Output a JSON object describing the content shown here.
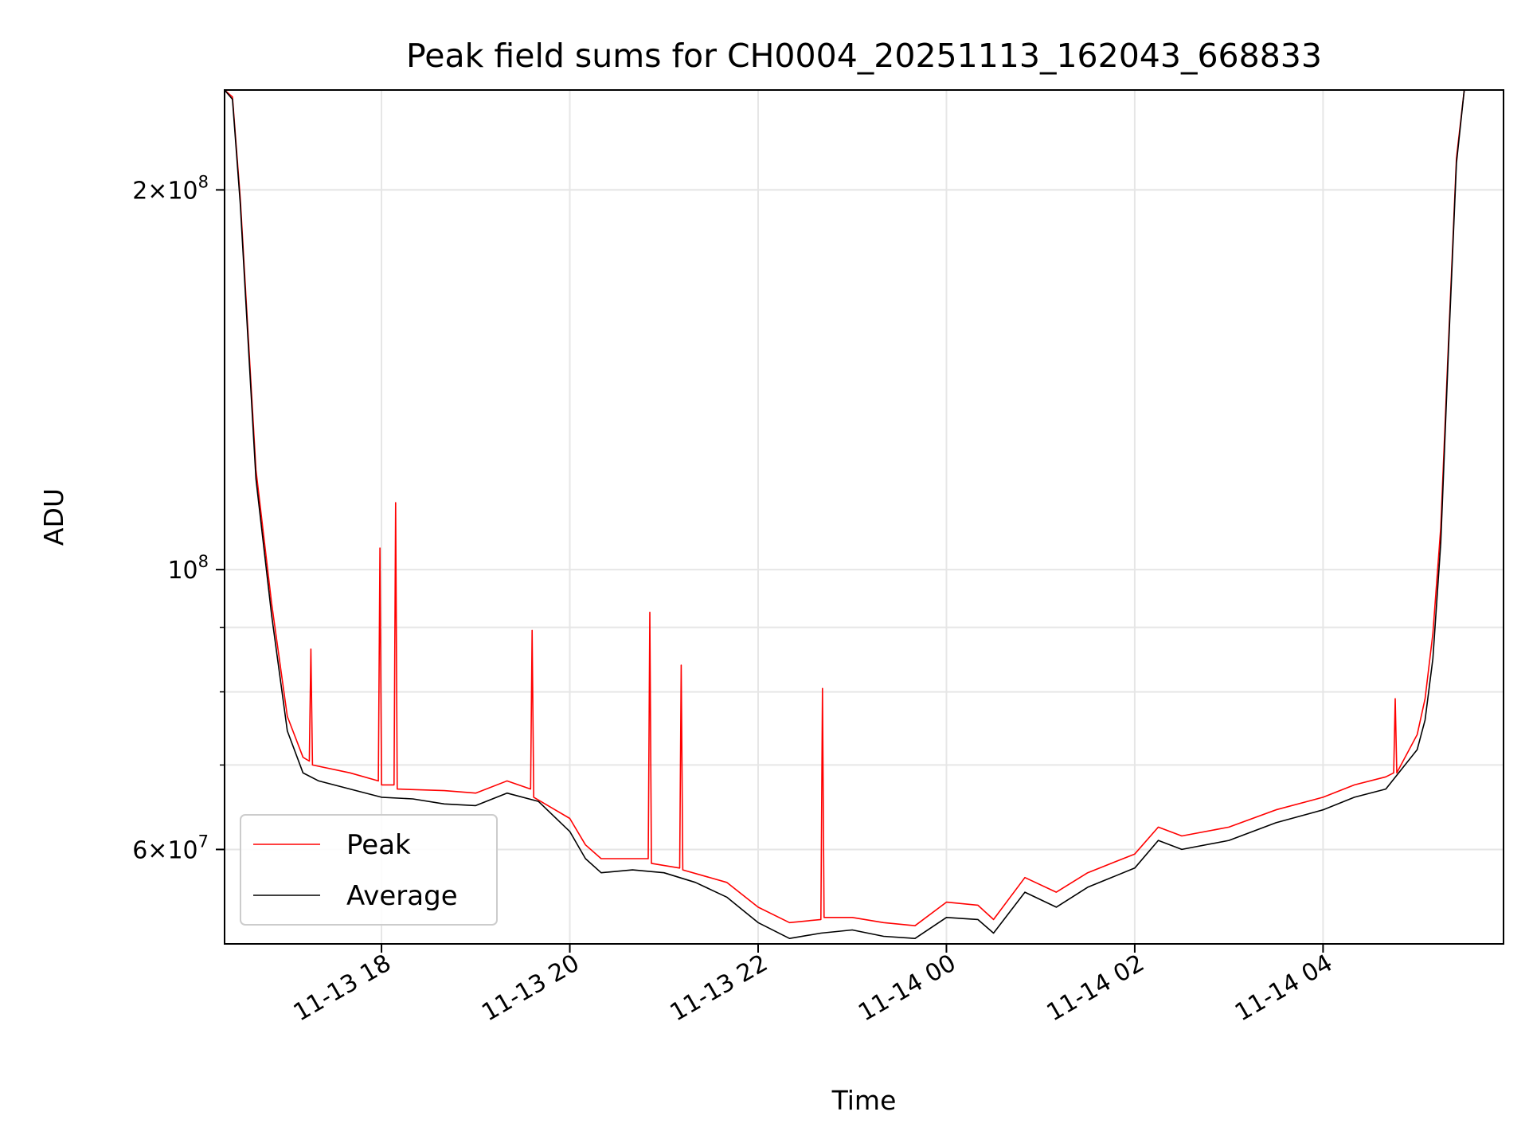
{
  "chart_data": {
    "type": "line",
    "title": "Peak field sums for CH0004_20251113_162043_668833",
    "xlabel": "Time",
    "ylabel": "ADU",
    "x_scale": "time",
    "y_scale": "log",
    "xlim": [
      "2025-11-13 16:20",
      "2025-11-14 05:55"
    ],
    "ylim": [
      50500000,
      240000000
    ],
    "grid": true,
    "legend_position": "lower-left",
    "x_ticks": [
      {
        "value": "2025-11-13 18:00",
        "label": "11-13 18"
      },
      {
        "value": "2025-11-13 20:00",
        "label": "11-13 20"
      },
      {
        "value": "2025-11-13 22:00",
        "label": "11-13 22"
      },
      {
        "value": "2025-11-14 00:00",
        "label": "11-14 00"
      },
      {
        "value": "2025-11-14 02:00",
        "label": "11-14 02"
      },
      {
        "value": "2025-11-14 04:00",
        "label": "11-14 04"
      }
    ],
    "y_ticks": [
      {
        "value": 60000000,
        "base": "6",
        "exp": "7"
      },
      {
        "value": 100000000,
        "base": "",
        "exp": "8"
      },
      {
        "value": 200000000,
        "base": "2",
        "exp": "8"
      }
    ],
    "series": [
      {
        "name": "Average",
        "color": "#000000",
        "x": [
          "2025-11-13 16:20",
          "2025-11-13 16:25",
          "2025-11-13 16:30",
          "2025-11-13 16:40",
          "2025-11-13 16:50",
          "2025-11-13 17:00",
          "2025-11-13 17:10",
          "2025-11-13 17:20",
          "2025-11-13 17:40",
          "2025-11-13 18:00",
          "2025-11-13 18:20",
          "2025-11-13 18:40",
          "2025-11-13 19:00",
          "2025-11-13 19:20",
          "2025-11-13 19:40",
          "2025-11-13 20:00",
          "2025-11-13 20:10",
          "2025-11-13 20:20",
          "2025-11-13 20:40",
          "2025-11-13 21:00",
          "2025-11-13 21:20",
          "2025-11-13 21:40",
          "2025-11-13 22:00",
          "2025-11-13 22:20",
          "2025-11-13 22:40",
          "2025-11-13 23:00",
          "2025-11-13 23:20",
          "2025-11-13 23:40",
          "2025-11-14 00:00",
          "2025-11-14 00:20",
          "2025-11-14 00:30",
          "2025-11-14 00:50",
          "2025-11-14 01:10",
          "2025-11-14 01:30",
          "2025-11-14 02:00",
          "2025-11-14 02:15",
          "2025-11-14 02:30",
          "2025-11-14 03:00",
          "2025-11-14 03:30",
          "2025-11-14 04:00",
          "2025-11-14 04:20",
          "2025-11-14 04:40",
          "2025-11-14 05:00",
          "2025-11-14 05:05",
          "2025-11-14 05:10",
          "2025-11-14 05:15",
          "2025-11-14 05:20",
          "2025-11-14 05:25",
          "2025-11-14 05:30",
          "2025-11-14 05:55"
        ],
        "y": [
          240000000,
          236000000,
          195000000,
          118000000,
          92000000,
          74500000,
          69000000,
          68000000,
          67000000,
          66000000,
          65800000,
          65200000,
          65000000,
          66500000,
          65500000,
          62000000,
          59000000,
          57500000,
          57800000,
          57500000,
          56500000,
          55000000,
          52500000,
          51000000,
          51500000,
          51800000,
          51200000,
          51000000,
          53000000,
          52800000,
          51500000,
          55500000,
          54000000,
          56000000,
          58000000,
          61000000,
          60000000,
          61000000,
          63000000,
          64500000,
          66000000,
          67000000,
          72000000,
          76000000,
          85000000,
          105000000,
          150000000,
          210000000,
          240000000,
          240000000
        ]
      },
      {
        "name": "Peak",
        "color": "#ff0000",
        "x": [
          "2025-11-13 16:20",
          "2025-11-13 16:25",
          "2025-11-13 16:30",
          "2025-11-13 16:40",
          "2025-11-13 16:50",
          "2025-11-13 17:00",
          "2025-11-13 17:10",
          "2025-11-13 17:14",
          "2025-11-13 17:15",
          "2025-11-13 17:16",
          "2025-11-13 17:40",
          "2025-11-13 17:58",
          "2025-11-13 17:59",
          "2025-11-13 18:00",
          "2025-11-13 18:08",
          "2025-11-13 18:09",
          "2025-11-13 18:10",
          "2025-11-13 18:40",
          "2025-11-13 19:00",
          "2025-11-13 19:20",
          "2025-11-13 19:35",
          "2025-11-13 19:36",
          "2025-11-13 19:37",
          "2025-11-13 20:00",
          "2025-11-13 20:10",
          "2025-11-13 20:20",
          "2025-11-13 20:50",
          "2025-11-13 20:51",
          "2025-11-13 20:52",
          "2025-11-13 21:10",
          "2025-11-13 21:11",
          "2025-11-13 21:12",
          "2025-11-13 21:40",
          "2025-11-13 22:00",
          "2025-11-13 22:20",
          "2025-11-13 22:40",
          "2025-11-13 22:41",
          "2025-11-13 22:42",
          "2025-11-13 23:00",
          "2025-11-13 23:20",
          "2025-11-13 23:40",
          "2025-11-14 00:00",
          "2025-11-14 00:20",
          "2025-11-14 00:30",
          "2025-11-14 00:50",
          "2025-11-14 01:10",
          "2025-11-14 01:30",
          "2025-11-14 02:00",
          "2025-11-14 02:15",
          "2025-11-14 02:30",
          "2025-11-14 03:00",
          "2025-11-14 03:30",
          "2025-11-14 04:00",
          "2025-11-14 04:20",
          "2025-11-14 04:40",
          "2025-11-14 04:45",
          "2025-11-14 04:46",
          "2025-11-14 04:47",
          "2025-11-14 05:00",
          "2025-11-14 05:05",
          "2025-11-14 05:10",
          "2025-11-14 05:15",
          "2025-11-14 05:20",
          "2025-11-14 05:25",
          "2025-11-14 05:30",
          "2025-11-14 05:55"
        ],
        "y": [
          240000000,
          237000000,
          197000000,
          120000000,
          94000000,
          76500000,
          71000000,
          70500000,
          86500000,
          70000000,
          69000000,
          68000000,
          104000000,
          67500000,
          67500000,
          113000000,
          67000000,
          66800000,
          66500000,
          68000000,
          67000000,
          89500000,
          66000000,
          63500000,
          60500000,
          59000000,
          59000000,
          92500000,
          58500000,
          58000000,
          84000000,
          57800000,
          56500000,
          54000000,
          52500000,
          52800000,
          80500000,
          53000000,
          53000000,
          52500000,
          52200000,
          54500000,
          54200000,
          52800000,
          57000000,
          55500000,
          57500000,
          59500000,
          62500000,
          61500000,
          62500000,
          64500000,
          66000000,
          67500000,
          68500000,
          69000000,
          79000000,
          69000000,
          74000000,
          79000000,
          89000000,
          108000000,
          152000000,
          212000000,
          240000000,
          240000000
        ]
      }
    ]
  }
}
